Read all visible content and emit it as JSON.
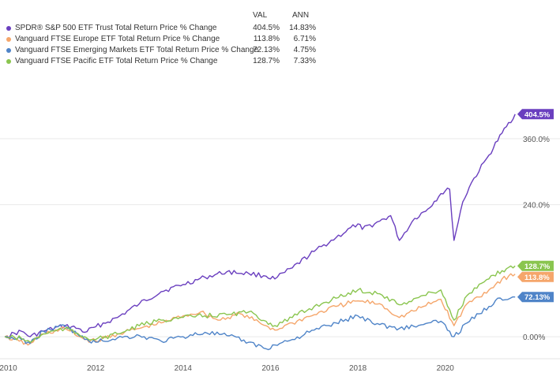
{
  "legend": {
    "val_header": "VAL",
    "ann_header": "ANN",
    "items": [
      {
        "name": "SPDR® S&P 500 ETF Trust Total Return Price % Change",
        "val": "404.5%",
        "ann": "14.83%",
        "color": "#6a3fbf"
      },
      {
        "name": "Vanguard FTSE Europe ETF Total Return Price % Change",
        "val": "113.8%",
        "ann": "6.71%",
        "color": "#f5a66b"
      },
      {
        "name": "Vanguard FTSE Emerging Markets ETF Total Return Price % Change",
        "val": "72.13%",
        "ann": "4.75%",
        "color": "#4f84c8"
      },
      {
        "name": "Vanguard FTSE Pacific ETF Total Return Price % Change",
        "val": "128.7%",
        "ann": "7.33%",
        "color": "#8ac54f"
      }
    ]
  },
  "chart_data": {
    "type": "line",
    "xlabel": "",
    "ylabel": "",
    "xlim": [
      2009.9,
      2021.65
    ],
    "ylim": [
      -40,
      440
    ],
    "x_ticks": [
      2010,
      2012,
      2014,
      2016,
      2018,
      2020
    ],
    "x_tick_labels": [
      "2010",
      "2012",
      "2014",
      "2016",
      "2018",
      "2020"
    ],
    "y_ticks": [
      0,
      240,
      360
    ],
    "y_tick_labels": [
      "0.00%",
      "240.0%",
      "360.0%"
    ],
    "grid": "horizontal",
    "end_labels": [
      "404.5%",
      "113.8%",
      "72.13%",
      "128.7%"
    ],
    "series": [
      {
        "name": "SPDR® S&P 500 ETF Trust Total Return Price % Change",
        "color": "#6a3fbf",
        "x": [
          2009.92,
          2010.3,
          2010.5,
          2010.8,
          2011.3,
          2011.6,
          2011.75,
          2012.0,
          2012.5,
          2013.0,
          2013.5,
          2014.0,
          2014.5,
          2015.0,
          2015.5,
          2015.9,
          2016.1,
          2016.5,
          2017.0,
          2017.5,
          2018.0,
          2018.1,
          2018.5,
          2018.75,
          2018.95,
          2019.3,
          2019.6,
          2019.9,
          2020.1,
          2020.2,
          2020.4,
          2020.6,
          2021.0,
          2021.3,
          2021.6
        ],
        "y": [
          0,
          10,
          0,
          10,
          20,
          15,
          8,
          18,
          35,
          60,
          82,
          95,
          108,
          118,
          115,
          110,
          105,
          125,
          155,
          180,
          205,
          195,
          210,
          220,
          175,
          215,
          232,
          260,
          268,
          175,
          245,
          280,
          330,
          370,
          404.5
        ]
      },
      {
        "name": "Vanguard FTSE Europe ETF Total Return Price % Change",
        "color": "#f5a66b",
        "x": [
          2009.92,
          2010.25,
          2010.45,
          2010.8,
          2011.3,
          2011.75,
          2012.0,
          2012.5,
          2013.0,
          2013.5,
          2014.0,
          2014.4,
          2014.8,
          2015.3,
          2015.9,
          2016.1,
          2016.5,
          2017.0,
          2017.5,
          2018.0,
          2018.5,
          2018.95,
          2019.5,
          2019.9,
          2020.2,
          2020.5,
          2021.0,
          2021.3,
          2021.6
        ],
        "y": [
          0,
          -8,
          -15,
          5,
          15,
          -5,
          -8,
          5,
          15,
          25,
          38,
          45,
          30,
          42,
          20,
          12,
          25,
          40,
          55,
          65,
          60,
          35,
          55,
          68,
          20,
          60,
          85,
          105,
          113.8
        ]
      },
      {
        "name": "Vanguard FTSE Emerging Markets ETF Total Return Price % Change",
        "color": "#4f84c8",
        "x": [
          2009.92,
          2010.3,
          2010.5,
          2010.8,
          2011.3,
          2011.75,
          2012.0,
          2012.5,
          2013.0,
          2013.5,
          2014.0,
          2014.5,
          2015.0,
          2015.5,
          2015.9,
          2016.1,
          2016.5,
          2017.0,
          2017.5,
          2018.0,
          2018.5,
          2018.95,
          2019.5,
          2019.9,
          2020.2,
          2020.5,
          2021.0,
          2021.2,
          2021.6
        ],
        "y": [
          0,
          -5,
          -12,
          10,
          20,
          -5,
          -10,
          -2,
          2,
          -8,
          0,
          8,
          2,
          -10,
          -22,
          -15,
          -5,
          12,
          25,
          38,
          22,
          15,
          22,
          28,
          0,
          25,
          55,
          70,
          72.13
        ]
      },
      {
        "name": "Vanguard FTSE Pacific ETF Total Return Price % Change",
        "color": "#8ac54f",
        "x": [
          2009.92,
          2010.3,
          2010.5,
          2010.8,
          2011.3,
          2011.75,
          2012.0,
          2012.5,
          2013.0,
          2013.5,
          2014.0,
          2014.5,
          2015.0,
          2015.5,
          2015.9,
          2016.1,
          2016.5,
          2017.0,
          2017.5,
          2018.0,
          2018.5,
          2018.95,
          2019.5,
          2019.9,
          2020.2,
          2020.5,
          2021.0,
          2021.3,
          2021.6
        ],
        "y": [
          0,
          -3,
          -10,
          5,
          15,
          0,
          -5,
          5,
          20,
          30,
          35,
          38,
          40,
          45,
          28,
          20,
          35,
          55,
          70,
          85,
          78,
          58,
          75,
          85,
          30,
          75,
          105,
          120,
          128.7
        ]
      }
    ]
  }
}
